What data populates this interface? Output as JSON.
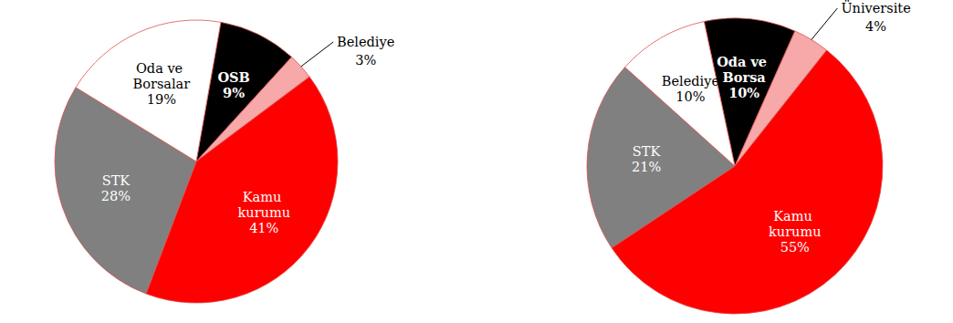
{
  "chart_data": [
    {
      "type": "pie",
      "categories": [
        "OSB",
        "Belediye",
        "Kamu kurumu",
        "STK",
        "Oda ve Borsalar"
      ],
      "values": [
        9,
        3,
        41,
        28,
        19
      ],
      "value_labels": [
        "9%",
        "3%",
        "41%",
        "28%",
        "19%"
      ],
      "colors": [
        "#000000",
        "#f7a8a8",
        "#ff0000",
        "#808080",
        "#ffffff"
      ],
      "data_labels": true
    },
    {
      "type": "pie",
      "categories": [
        "Oda ve Borsa",
        "Üniversite",
        "Kamu kurumu",
        "STK",
        "Belediye"
      ],
      "values": [
        10,
        4,
        55,
        21,
        10
      ],
      "value_labels": [
        "10%",
        "4%",
        "55%",
        "21%",
        "10%"
      ],
      "colors": [
        "#000000",
        "#f7a8a8",
        "#ff0000",
        "#808080",
        "#ffffff"
      ],
      "data_labels": true
    }
  ]
}
